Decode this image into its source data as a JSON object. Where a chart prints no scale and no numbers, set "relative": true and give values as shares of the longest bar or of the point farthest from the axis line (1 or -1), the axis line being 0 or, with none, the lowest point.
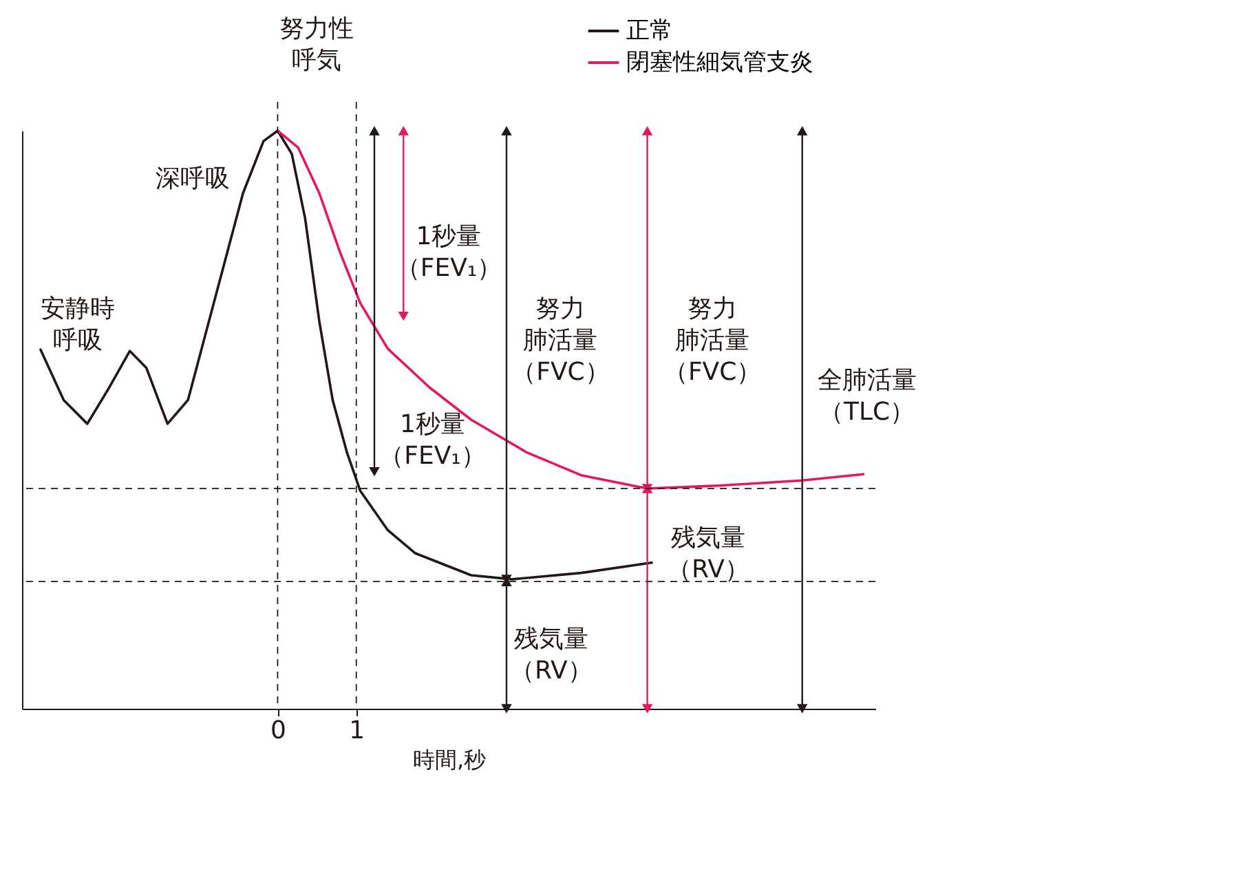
{
  "chart_data": {
    "type": "line",
    "relative": true,
    "xlabel": "時間,秒",
    "xlim": [
      -3.25,
      7.6
    ],
    "xticks": [
      {
        "value": 0,
        "label": "0"
      },
      {
        "value": 1,
        "label": "1"
      }
    ],
    "legend": "top right",
    "grid": false,
    "line_style": "solid",
    "series": [
      {
        "name": "正常",
        "color": "#231815",
        "x": [
          -3.02,
          -2.72,
          -2.42,
          -2.14,
          -1.88,
          -1.67,
          -1.4,
          -1.14,
          -0.79,
          -0.44,
          -0.18,
          0.0,
          0.18,
          0.35,
          0.53,
          0.7,
          0.88,
          1.05,
          1.4,
          1.75,
          2.46,
          2.98,
          3.86,
          4.77
        ],
        "values": [
          0.623,
          0.534,
          0.493,
          0.556,
          0.619,
          0.59,
          0.493,
          0.534,
          0.713,
          0.892,
          0.982,
          1.0,
          0.96,
          0.848,
          0.67,
          0.534,
          0.444,
          0.377,
          0.309,
          0.269,
          0.231,
          0.224,
          0.235,
          0.253
        ]
      },
      {
        "name": "閉塞性細気管支炎",
        "color": "#e4185d",
        "x": [
          0.0,
          0.26,
          0.53,
          0.79,
          1.05,
          1.4,
          1.93,
          2.46,
          3.16,
          3.86,
          4.7,
          5.61,
          6.67,
          7.46
        ],
        "values": [
          1.0,
          0.971,
          0.892,
          0.791,
          0.702,
          0.623,
          0.556,
          0.5,
          0.444,
          0.404,
          0.381,
          0.386,
          0.395,
          0.406
        ]
      },
      {
        "type": "line",
        "marker": "triangle",
        "color": "#231815",
        "x": [
          1.23,
          1.23
        ],
        "values": [
          1.0,
          0.41
        ]
      },
      {
        "type": "line",
        "marker": "triangle",
        "color": "#e4185d",
        "x": [
          1.6,
          1.6
        ],
        "values": [
          1.0,
          0.679
        ]
      },
      {
        "type": "line",
        "marker": "triangle",
        "color": "#231815",
        "x": [
          2.91,
          2.91
        ],
        "values": [
          1.0,
          0.224
        ]
      },
      {
        "type": "line",
        "marker": "triangle",
        "color": "#e4185d",
        "x": [
          4.7,
          4.7
        ],
        "values": [
          1.0,
          0.381
        ]
      },
      {
        "type": "line",
        "marker": "triangle",
        "color": "#231815",
        "x": [
          6.67,
          6.67
        ],
        "values": [
          1.0,
          0.0
        ]
      },
      {
        "type": "line",
        "marker": "triangle",
        "color": "#231815",
        "x": [
          2.91,
          2.91
        ],
        "values": [
          0.22,
          0.0
        ]
      },
      {
        "type": "line",
        "marker": "triangle",
        "color": "#e4185d",
        "x": [
          4.7,
          4.7
        ],
        "values": [
          0.381,
          0.0
        ]
      }
    ],
    "ref_lines": [
      {
        "axis": "x",
        "value": 0,
        "color": "#231815",
        "line_style": "dashed"
      },
      {
        "axis": "x",
        "value": 1,
        "color": "#231815",
        "line_style": "dashed"
      },
      {
        "axis": "y",
        "value": 0.381,
        "color": "#231815",
        "line_style": "dashed"
      },
      {
        "axis": "y",
        "value": 0.22,
        "color": "#231815",
        "line_style": "dashed"
      }
    ],
    "annotations": [
      "努力性呼気",
      "安静時呼吸",
      "深呼吸",
      "1秒量（FEV₁）",
      "1秒量（FEV₁）",
      "努力肺活量（FVC）",
      "努力肺活量（FVC）",
      "全肺活量（TLC）",
      "残気量（RV）",
      "残気量（RV）"
    ]
  }
}
